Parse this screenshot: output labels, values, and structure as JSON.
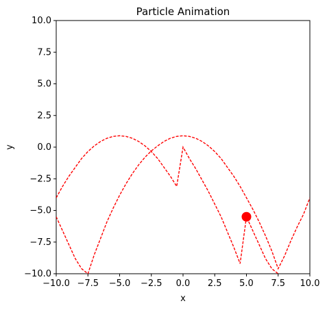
{
  "chart_data": {
    "type": "line",
    "title": "Particle Animation",
    "xlabel": "x",
    "ylabel": "y",
    "xlim": [
      -10,
      10
    ],
    "ylim": [
      -10,
      10
    ],
    "x_ticks": [
      -10.0,
      -7.5,
      -5.0,
      -2.5,
      0.0,
      2.5,
      5.0,
      7.5,
      10.0
    ],
    "y_ticks": [
      -10.0,
      -7.5,
      -5.0,
      -2.5,
      0.0,
      2.5,
      5.0,
      7.5,
      10.0
    ],
    "x_tick_labels": [
      "−10.0",
      "−7.5",
      "−5.0",
      "−2.5",
      "0.0",
      "2.5",
      "5.0",
      "7.5",
      "10.0"
    ],
    "y_tick_labels": [
      "−10.0",
      "−7.5",
      "−5.0",
      "−2.5",
      "0.0",
      "2.5",
      "5.0",
      "7.5",
      "10.0"
    ],
    "grid": false,
    "series": [
      {
        "style": "dashed",
        "color": "#ff0000",
        "x": [
          -10,
          -9.5,
          -9,
          -8.5,
          -8,
          -7.5,
          -7,
          -6.5,
          -6,
          -5.5,
          -5,
          -4.5,
          -4,
          -3.5,
          -3,
          -2.5,
          -2,
          -1.5,
          -1,
          -0.5,
          0,
          0.5,
          1,
          1.5,
          2,
          2.5,
          3,
          3.5,
          4,
          4.5,
          5,
          5.5,
          6,
          6.5,
          7,
          7.5
        ],
        "y": [
          -4.0,
          -3.1,
          -2.3,
          -1.6,
          -0.9,
          -0.35,
          0.1,
          0.45,
          0.7,
          0.85,
          0.9,
          0.85,
          0.7,
          0.45,
          0.1,
          -0.35,
          -0.9,
          -1.6,
          -2.3,
          -3.1,
          -0.0,
          -0.9,
          -1.7,
          -2.6,
          -3.5,
          -4.5,
          -5.5,
          -6.7,
          -7.9,
          -9.2,
          -5.5,
          -6.6,
          -7.7,
          -8.8,
          -9.6,
          -10.0
        ]
      },
      {
        "style": "dashed",
        "color": "#ff0000",
        "x": [
          -10,
          -9.5,
          -9,
          -8.5,
          -8,
          -7.5,
          -7,
          -6.5,
          -6,
          -5.5,
          -5,
          -4.5,
          -4,
          -3.5,
          -3,
          -2.5,
          -2,
          -1.5,
          -1,
          -0.5,
          0,
          0.5,
          1,
          1.5,
          2,
          2.5,
          3,
          3.5,
          4,
          4.5,
          5,
          5.5,
          6,
          6.5,
          7,
          7.5,
          8,
          8.5,
          9,
          9.5,
          10
        ],
        "y": [
          -5.5,
          -6.6,
          -7.7,
          -8.8,
          -9.6,
          -10.0,
          -8.5,
          -7.2,
          -5.9,
          -4.8,
          -3.8,
          -2.9,
          -2.1,
          -1.4,
          -0.8,
          -0.3,
          0.1,
          0.45,
          0.7,
          0.85,
          0.9,
          0.85,
          0.7,
          0.45,
          0.1,
          -0.35,
          -0.9,
          -1.6,
          -2.3,
          -3.1,
          -4.0,
          -4.9,
          -5.9,
          -7.0,
          -8.2,
          -9.6,
          -8.6,
          -7.4,
          -6.3,
          -5.3,
          -4.0
        ]
      }
    ],
    "marker": {
      "x": 5.0,
      "y": -5.5,
      "color": "#ff0000"
    }
  }
}
